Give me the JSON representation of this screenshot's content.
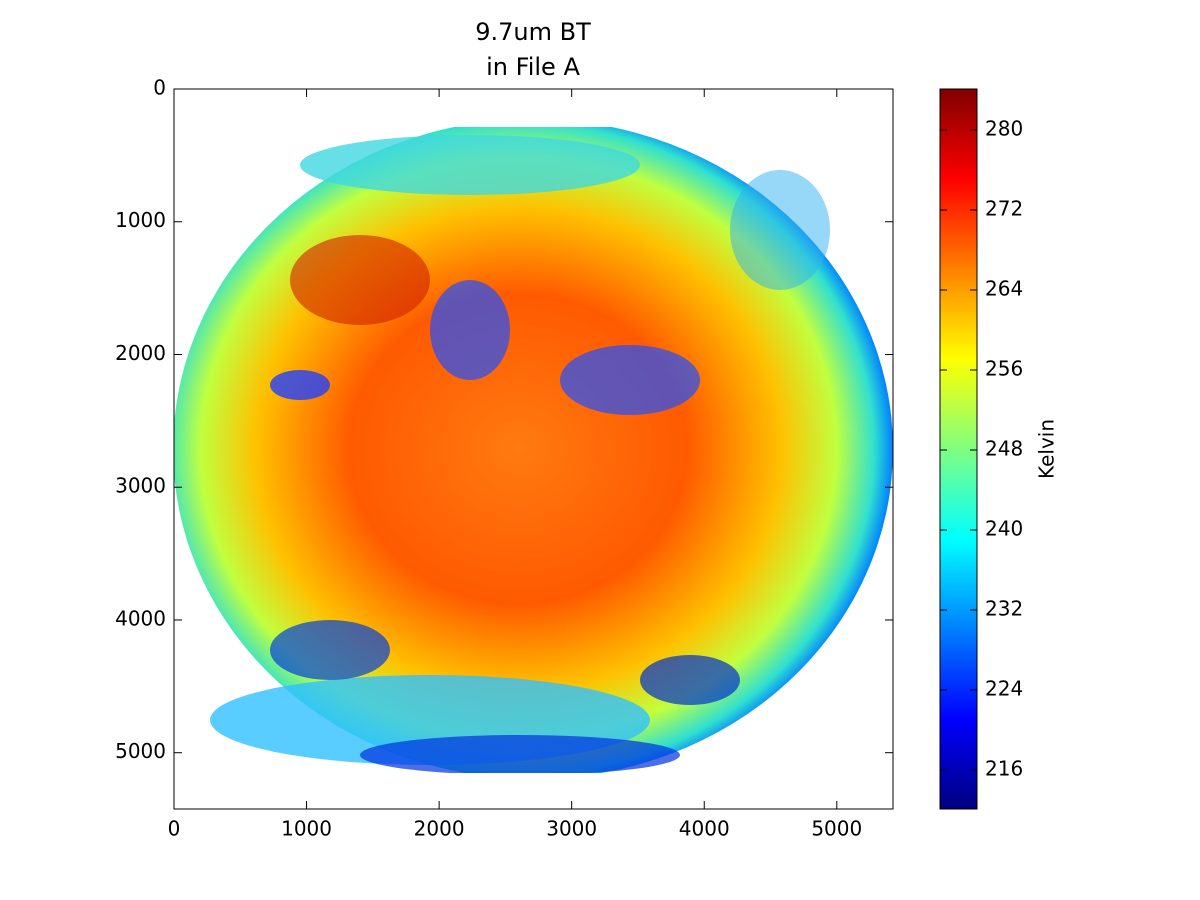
{
  "chart_data": {
    "type": "image",
    "title": [
      "9.7um BT",
      "in File A"
    ],
    "xlim": [
      0,
      5424
    ],
    "xticks": [
      0,
      1000,
      2000,
      3000,
      4000,
      5000
    ],
    "ylim": [
      5424,
      0
    ],
    "yticks": [
      0,
      1000,
      2000,
      3000,
      4000,
      5000
    ],
    "colorbar": {
      "label": "Kelvin",
      "colormap": "jet",
      "lim": [
        212.1,
        284.1
      ],
      "ticks": [
        216,
        224,
        232,
        240,
        248,
        256,
        264,
        272,
        280
      ]
    }
  }
}
